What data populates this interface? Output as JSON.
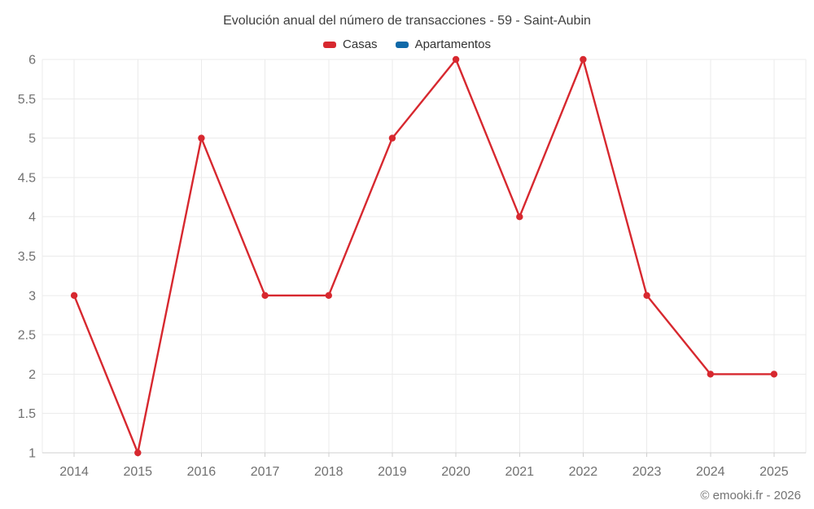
{
  "credit": "© emooki.fr - 2026",
  "colors": {
    "grid": "#ebebeb",
    "axis_line": "#cfcfcf",
    "tick": "#cfcfcf",
    "title_text": "#3f3f3f",
    "legend_text": "#333333",
    "axis_label_text": "#707070",
    "background": "#ffffff"
  },
  "chart_data": {
    "type": "line",
    "title": "Evolución anual del número de transacciones - 59 - Saint-Aubin",
    "categories": [
      "2014",
      "2015",
      "2016",
      "2017",
      "2018",
      "2019",
      "2020",
      "2021",
      "2022",
      "2023",
      "2024",
      "2025"
    ],
    "series": [
      {
        "name": "Casas",
        "color": "#d7282f",
        "values": [
          3,
          1,
          5,
          3,
          3,
          5,
          6,
          4,
          6,
          3,
          2,
          2
        ]
      },
      {
        "name": "Apartamentos",
        "color": "#1069a8",
        "values": []
      }
    ],
    "xlabel": "",
    "ylabel": "",
    "ylim": [
      1,
      6
    ],
    "ytick_step": 0.5,
    "grid": true,
    "legend_position": "top"
  }
}
